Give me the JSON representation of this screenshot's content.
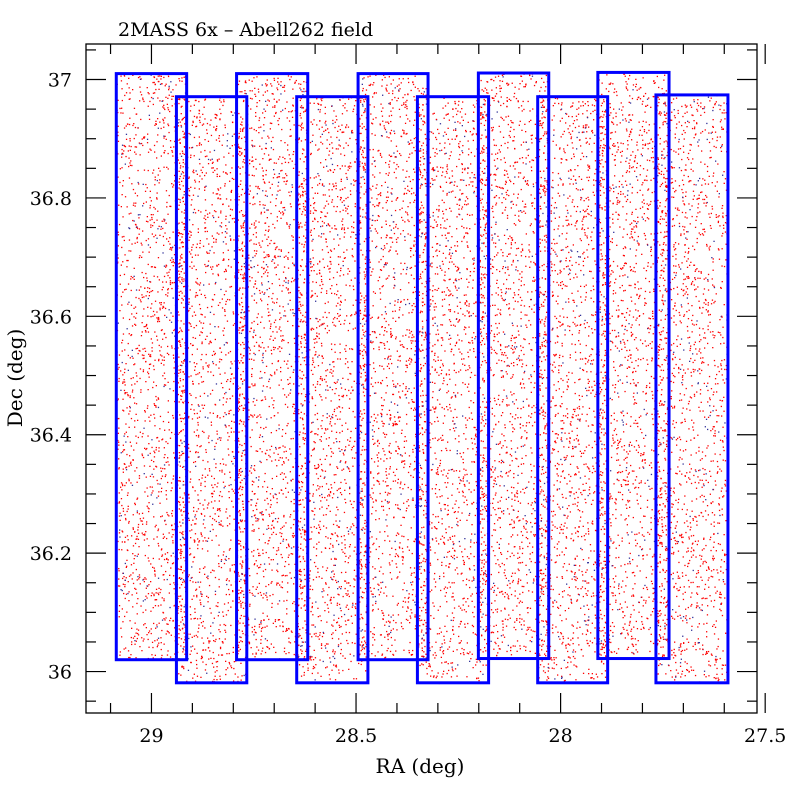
{
  "chart_data": {
    "type": "scatter",
    "title": "2MASS 6x  –  Abell262 field",
    "xlabel": "RA (deg)",
    "ylabel": "Dec (deg)",
    "xlim": [
      29.16,
      27.52
    ],
    "x_reversed": true,
    "ylim": [
      35.93,
      37.06
    ],
    "x_ticks": [
      29,
      28.5,
      28,
      27.5
    ],
    "x_tick_labels": [
      "29",
      "28.5",
      "28",
      "27.5"
    ],
    "x_minor_step": 0.1,
    "y_ticks": [
      36,
      36.2,
      36.4,
      36.6,
      36.8,
      37
    ],
    "y_tick_labels": [
      "36",
      "36.2",
      "36.4",
      "36.6",
      "36.8",
      "37"
    ],
    "y_minor_step": 0.05,
    "grid": false,
    "point_color": "#ff0000",
    "tile_color": "#0000ff",
    "tiles": [
      {
        "ra": [
          29.086,
          28.914
        ],
        "dec": [
          36.02,
          37.01
        ]
      },
      {
        "ra": [
          28.939,
          28.767
        ],
        "dec": [
          35.981,
          36.971
        ]
      },
      {
        "ra": [
          28.792,
          28.618
        ],
        "dec": [
          36.02,
          37.01
        ]
      },
      {
        "ra": [
          28.645,
          28.471
        ],
        "dec": [
          35.981,
          36.971
        ]
      },
      {
        "ra": [
          28.495,
          28.324
        ],
        "dec": [
          36.02,
          37.01
        ]
      },
      {
        "ra": [
          28.35,
          28.176
        ],
        "dec": [
          35.981,
          36.971
        ]
      },
      {
        "ra": [
          28.201,
          28.029
        ],
        "dec": [
          36.022,
          37.011
        ]
      },
      {
        "ra": [
          28.056,
          27.885
        ],
        "dec": [
          35.981,
          36.971
        ]
      },
      {
        "ra": [
          27.909,
          27.735
        ],
        "dec": [
          36.022,
          37.012
        ]
      },
      {
        "ra": [
          27.767,
          27.591
        ],
        "dec": [
          35.981,
          36.974
        ]
      }
    ]
  }
}
